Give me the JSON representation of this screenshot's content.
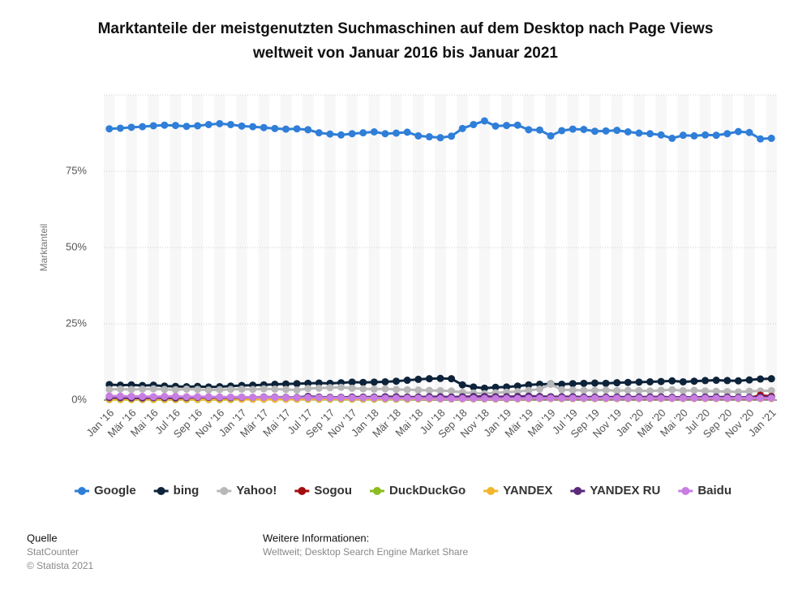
{
  "chart_data": {
    "type": "line",
    "title": "Marktanteile der meistgenutzten Suchmaschinen auf dem Desktop nach Page Views",
    "subtitle": "weltweit von Januar 2016 bis Januar 2021",
    "y_label": "Marktanteil",
    "categories": [
      "Jan '16",
      null,
      "Mär '16",
      null,
      "Mai '16",
      null,
      "Jul '16",
      null,
      "Sep '16",
      null,
      "Nov '16",
      null,
      "Jan '17",
      null,
      "Mär '17",
      null,
      "Mai '17",
      null,
      "Jul '17",
      null,
      "Sep '17",
      null,
      "Nov '17",
      null,
      "Jan '18",
      null,
      "Mär '18",
      null,
      "Mai '18",
      null,
      "Jul '18",
      null,
      "Sep '18",
      null,
      "Nov '18",
      null,
      "Jan '19",
      null,
      "Mär '19",
      null,
      "Mai '19",
      null,
      "Jul '19",
      null,
      "Sep '19",
      null,
      "Nov '19",
      null,
      "Jan '20",
      null,
      "Mär '20",
      null,
      "Mai '20",
      null,
      "Jul '20",
      null,
      "Sep '20",
      null,
      "Nov '20",
      null,
      "Jan '21"
    ],
    "ylim": [
      0,
      100
    ],
    "yticks": [
      {
        "value": 0,
        "label": "0%"
      },
      {
        "value": 25,
        "label": "25%"
      },
      {
        "value": 50,
        "label": "50%"
      },
      {
        "value": 75,
        "label": "75%"
      }
    ],
    "grid": true,
    "legend": "bottom",
    "series": [
      {
        "name": "Google",
        "color": "#2f7ed8",
        "values": [
          88.9,
          89.1,
          89.4,
          89.6,
          89.9,
          90.1,
          90.0,
          89.7,
          89.9,
          90.3,
          90.6,
          90.3,
          89.8,
          89.6,
          89.3,
          89.0,
          88.8,
          88.9,
          88.6,
          87.6,
          87.2,
          86.9,
          87.3,
          87.6,
          87.9,
          87.3,
          87.5,
          87.8,
          86.6,
          86.3,
          86.0,
          86.5,
          89.0,
          90.3,
          91.5,
          89.8,
          90.0,
          90.1,
          88.6,
          88.5,
          86.6,
          88.3,
          88.8,
          88.7,
          88.1,
          88.2,
          88.4,
          87.9,
          87.5,
          87.3,
          86.9,
          85.8,
          86.8,
          86.6,
          86.9,
          86.8,
          87.3,
          88.0,
          87.7,
          85.6,
          85.8
        ]
      },
      {
        "name": "bing",
        "color": "#0d233a",
        "values": [
          5.1,
          4.9,
          5.0,
          4.8,
          4.9,
          4.6,
          4.5,
          4.4,
          4.5,
          4.3,
          4.4,
          4.6,
          4.8,
          4.9,
          5.0,
          5.2,
          5.3,
          5.4,
          5.5,
          5.6,
          5.5,
          5.7,
          5.9,
          5.8,
          5.9,
          6.0,
          6.2,
          6.5,
          6.8,
          7.0,
          7.1,
          7.0,
          5.0,
          4.3,
          3.9,
          4.2,
          4.3,
          4.6,
          5.0,
          5.2,
          5.3,
          5.2,
          5.4,
          5.5,
          5.6,
          5.5,
          5.7,
          5.8,
          5.9,
          6.0,
          6.1,
          6.3,
          6.0,
          6.2,
          6.4,
          6.5,
          6.4,
          6.3,
          6.6,
          6.9,
          7.0
        ]
      },
      {
        "name": "Yahoo!",
        "color": "#b8b8b8",
        "values": [
          3.5,
          3.6,
          3.5,
          3.6,
          3.7,
          3.5,
          3.4,
          3.6,
          3.5,
          3.3,
          3.4,
          3.5,
          3.6,
          3.5,
          3.7,
          3.6,
          3.5,
          3.3,
          3.8,
          3.9,
          4.1,
          4.2,
          3.9,
          3.7,
          3.6,
          3.7,
          3.5,
          3.4,
          3.3,
          3.2,
          3.1,
          3.0,
          2.5,
          2.3,
          2.1,
          2.4,
          2.6,
          2.8,
          3.2,
          3.6,
          5.2,
          3.4,
          3.3,
          3.2,
          3.2,
          3.3,
          3.1,
          3.2,
          3.1,
          3.0,
          3.2,
          3.4,
          3.1,
          3.2,
          3.0,
          2.9,
          2.8,
          2.7,
          2.9,
          3.0,
          3.1
        ]
      },
      {
        "name": "Sogou",
        "color": "#a30d0d",
        "values": [
          0.3,
          0.3,
          0.3,
          0.4,
          0.4,
          0.4,
          0.3,
          0.3,
          0.4,
          0.4,
          0.3,
          0.3,
          0.4,
          0.4,
          0.4,
          0.5,
          0.5,
          0.4,
          0.4,
          0.4,
          0.5,
          0.5,
          0.5,
          0.5,
          0.5,
          0.4,
          0.4,
          0.5,
          0.5,
          0.5,
          0.4,
          0.4,
          0.5,
          0.5,
          0.5,
          0.4,
          0.4,
          0.5,
          0.5,
          0.6,
          0.6,
          0.5,
          0.6,
          0.6,
          0.7,
          0.7,
          0.8,
          0.8,
          0.9,
          1.0,
          1.0,
          0.9,
          0.8,
          0.7,
          0.7,
          0.7,
          0.6,
          0.6,
          0.7,
          1.6,
          1.2
        ]
      },
      {
        "name": "DuckDuckGo",
        "color": "#8bbc21",
        "values": [
          0.2,
          0.2,
          0.2,
          0.2,
          0.2,
          0.2,
          0.2,
          0.2,
          0.2,
          0.2,
          0.2,
          0.2,
          0.3,
          0.3,
          0.3,
          0.3,
          0.3,
          0.3,
          0.3,
          0.3,
          0.3,
          0.3,
          0.3,
          0.3,
          0.3,
          0.3,
          0.3,
          0.3,
          0.4,
          0.4,
          0.4,
          0.4,
          0.4,
          0.4,
          0.4,
          0.4,
          0.4,
          0.4,
          0.5,
          0.5,
          0.5,
          0.5,
          0.5,
          0.5,
          0.5,
          0.5,
          0.5,
          0.5,
          0.6,
          0.6,
          0.6,
          0.6,
          0.6,
          0.6,
          0.6,
          0.6,
          0.7,
          0.7,
          0.7,
          0.7,
          0.7
        ]
      },
      {
        "name": "YANDEX",
        "color": "#f2b52c",
        "values": [
          0.3,
          0.3,
          0.3,
          0.3,
          0.3,
          0.3,
          0.3,
          0.3,
          0.3,
          0.3,
          0.3,
          0.3,
          0.3,
          0.3,
          0.3,
          0.3,
          0.3,
          0.3,
          0.4,
          0.4,
          0.4,
          0.4,
          0.4,
          0.4,
          0.4,
          0.4,
          0.4,
          0.4,
          0.4,
          0.4,
          0.4,
          0.4,
          0.4,
          0.4,
          0.4,
          0.4,
          0.4,
          0.4,
          0.5,
          0.5,
          0.5,
          0.5,
          0.5,
          0.5,
          0.5,
          0.5,
          0.5,
          0.5,
          0.5,
          0.5,
          0.5,
          0.5,
          0.5,
          0.5,
          0.5,
          0.5,
          0.5,
          0.5,
          0.5,
          0.5,
          0.5
        ]
      },
      {
        "name": "YANDEX RU",
        "color": "#5b2a78",
        "values": [
          0.8,
          0.8,
          0.7,
          0.7,
          0.8,
          0.8,
          0.7,
          0.8,
          0.9,
          0.9,
          0.8,
          0.8,
          0.9,
          0.9,
          1.0,
          1.0,
          0.9,
          0.9,
          1.2,
          1.0,
          0.9,
          0.9,
          1.0,
          1.0,
          1.0,
          1.1,
          1.1,
          1.0,
          1.0,
          1.1,
          1.1,
          1.0,
          1.1,
          1.2,
          1.2,
          1.1,
          1.1,
          1.2,
          1.3,
          1.2,
          1.1,
          1.1,
          1.1,
          1.0,
          1.0,
          1.0,
          1.0,
          1.0,
          1.0,
          1.0,
          1.0,
          0.9,
          0.9,
          0.9,
          1.0,
          1.0,
          1.0,
          0.9,
          0.9,
          1.0,
          1.0
        ]
      },
      {
        "name": "Baidu",
        "color": "#c77ee0",
        "values": [
          1.3,
          1.3,
          1.2,
          1.2,
          1.1,
          1.2,
          1.2,
          1.1,
          1.1,
          1.1,
          1.0,
          1.0,
          1.0,
          0.9,
          0.9,
          0.9,
          0.8,
          0.8,
          0.8,
          0.8,
          0.7,
          0.7,
          0.7,
          0.7,
          0.7,
          0.6,
          0.6,
          0.6,
          0.6,
          0.6,
          0.5,
          0.5,
          0.5,
          0.5,
          0.5,
          0.5,
          0.5,
          0.5,
          0.6,
          0.6,
          0.6,
          0.6,
          0.6,
          0.6,
          0.6,
          0.6,
          0.6,
          0.6,
          0.6,
          0.6,
          0.6,
          0.6,
          0.6,
          0.6,
          0.6,
          0.6,
          0.6,
          0.6,
          0.6,
          0.6,
          0.6
        ]
      }
    ]
  },
  "footer": {
    "source_heading": "Quelle",
    "source": "StatCounter",
    "copyright": "© Statista 2021",
    "info_heading": "Weitere Informationen:",
    "info": "Weltweit; Desktop Search Engine Market Share"
  }
}
